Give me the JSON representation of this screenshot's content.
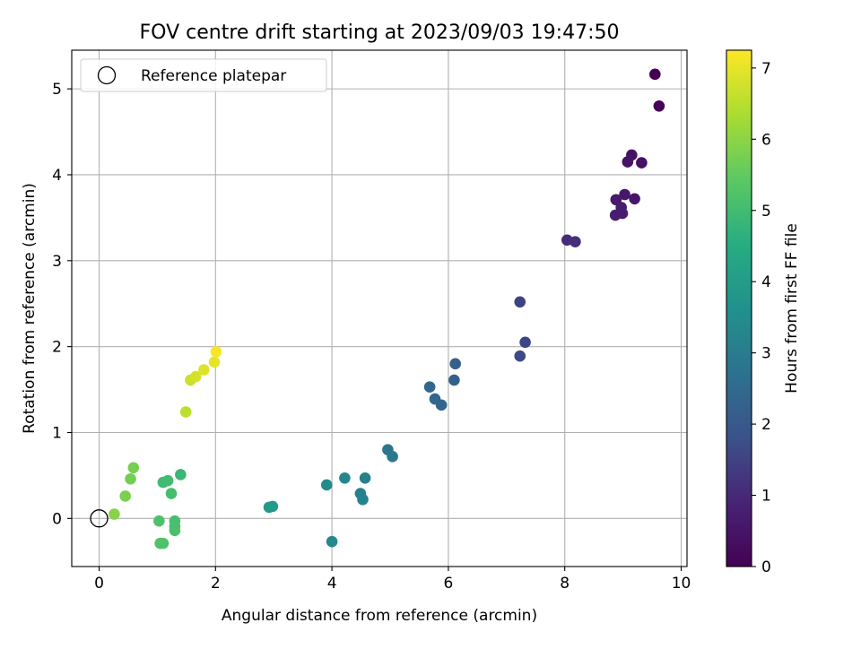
{
  "chart_data": {
    "type": "scatter",
    "title": "FOV centre drift starting at 2023/09/03 19:47:50",
    "xlabel": "Angular distance from reference (arcmin)",
    "ylabel": "Rotation from reference (arcmin)",
    "xlim": [
      -0.47,
      10.1
    ],
    "ylim": [
      -0.56,
      5.45
    ],
    "xticks": [
      0,
      2,
      4,
      6,
      8,
      10
    ],
    "yticks": [
      0,
      1,
      2,
      3,
      4,
      5
    ],
    "grid": true,
    "legend": {
      "position": "top-left",
      "label": "Reference platepar"
    },
    "reference_point": {
      "x": 0,
      "y": 0
    },
    "colorbar": {
      "label": "Hours from first FF file",
      "min": 0,
      "max": 7.25,
      "ticks": [
        0,
        1,
        2,
        3,
        4,
        5,
        6,
        7
      ],
      "colormap": "viridis"
    },
    "points": [
      {
        "x": 9.55,
        "y": 5.17,
        "c": 0.0
      },
      {
        "x": 9.62,
        "y": 4.8,
        "c": 0.05
      },
      {
        "x": 9.15,
        "y": 4.23,
        "c": 0.45
      },
      {
        "x": 9.08,
        "y": 4.15,
        "c": 0.5
      },
      {
        "x": 9.32,
        "y": 4.14,
        "c": 0.4
      },
      {
        "x": 9.03,
        "y": 3.77,
        "c": 0.6
      },
      {
        "x": 8.88,
        "y": 3.71,
        "c": 0.65
      },
      {
        "x": 9.2,
        "y": 3.72,
        "c": 0.55
      },
      {
        "x": 8.97,
        "y": 3.62,
        "c": 0.7
      },
      {
        "x": 8.87,
        "y": 3.53,
        "c": 0.75
      },
      {
        "x": 8.99,
        "y": 3.55,
        "c": 0.72
      },
      {
        "x": 8.04,
        "y": 3.24,
        "c": 1.05
      },
      {
        "x": 8.18,
        "y": 3.22,
        "c": 1.1
      },
      {
        "x": 7.23,
        "y": 2.52,
        "c": 1.5
      },
      {
        "x": 7.32,
        "y": 2.05,
        "c": 1.6
      },
      {
        "x": 7.23,
        "y": 1.89,
        "c": 1.65
      },
      {
        "x": 6.12,
        "y": 1.8,
        "c": 2.2
      },
      {
        "x": 6.1,
        "y": 1.61,
        "c": 2.25
      },
      {
        "x": 5.68,
        "y": 1.53,
        "c": 2.45
      },
      {
        "x": 5.77,
        "y": 1.39,
        "c": 2.4
      },
      {
        "x": 5.88,
        "y": 1.32,
        "c": 2.35
      },
      {
        "x": 4.96,
        "y": 0.8,
        "c": 2.85
      },
      {
        "x": 5.04,
        "y": 0.72,
        "c": 2.9
      },
      {
        "x": 4.22,
        "y": 0.47,
        "c": 3.3
      },
      {
        "x": 4.57,
        "y": 0.47,
        "c": 3.15
      },
      {
        "x": 3.91,
        "y": 0.39,
        "c": 3.45
      },
      {
        "x": 4.49,
        "y": 0.29,
        "c": 3.2
      },
      {
        "x": 4.53,
        "y": 0.22,
        "c": 3.22
      },
      {
        "x": 2.92,
        "y": 0.13,
        "c": 3.9
      },
      {
        "x": 2.98,
        "y": 0.14,
        "c": 3.88
      },
      {
        "x": 4.0,
        "y": -0.27,
        "c": 3.4
      },
      {
        "x": 1.4,
        "y": 0.51,
        "c": 4.85
      },
      {
        "x": 1.1,
        "y": 0.42,
        "c": 4.95
      },
      {
        "x": 1.18,
        "y": 0.44,
        "c": 5.0
      },
      {
        "x": 1.24,
        "y": 0.29,
        "c": 5.05
      },
      {
        "x": 1.3,
        "y": -0.03,
        "c": 5.1
      },
      {
        "x": 1.3,
        "y": -0.09,
        "c": 5.12
      },
      {
        "x": 1.3,
        "y": -0.14,
        "c": 5.15
      },
      {
        "x": 1.03,
        "y": -0.03,
        "c": 5.2
      },
      {
        "x": 1.05,
        "y": -0.29,
        "c": 5.25
      },
      {
        "x": 1.1,
        "y": -0.29,
        "c": 5.22
      },
      {
        "x": 0.54,
        "y": 0.46,
        "c": 5.7
      },
      {
        "x": 0.59,
        "y": 0.59,
        "c": 5.75
      },
      {
        "x": 0.45,
        "y": 0.26,
        "c": 5.8
      },
      {
        "x": 0.26,
        "y": 0.05,
        "c": 5.95
      },
      {
        "x": 1.49,
        "y": 1.24,
        "c": 6.55
      },
      {
        "x": 1.57,
        "y": 1.61,
        "c": 6.7
      },
      {
        "x": 1.66,
        "y": 1.65,
        "c": 6.8
      },
      {
        "x": 1.8,
        "y": 1.73,
        "c": 6.9
      },
      {
        "x": 1.98,
        "y": 1.82,
        "c": 7.0
      },
      {
        "x": 2.01,
        "y": 1.94,
        "c": 7.2
      }
    ]
  }
}
